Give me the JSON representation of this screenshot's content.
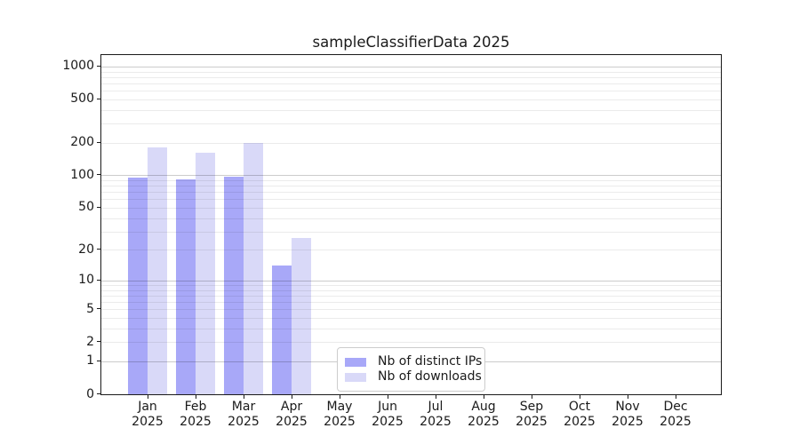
{
  "title": "sampleClassifierData 2025",
  "chart_data": {
    "type": "bar",
    "title": "sampleClassifierData 2025",
    "categories": [
      "Jan 2025",
      "Feb 2025",
      "Mar 2025",
      "Apr 2025",
      "May 2025",
      "Jun 2025",
      "Jul 2025",
      "Aug 2025",
      "Sep 2025",
      "Oct 2025",
      "Nov 2025",
      "Dec 2025"
    ],
    "series": [
      {
        "name": "Nb of distinct IPs",
        "color": "#a8a8f8",
        "values": [
          95,
          92,
          98,
          14,
          0,
          0,
          0,
          0,
          0,
          0,
          0,
          0
        ]
      },
      {
        "name": "Nb of downloads",
        "color": "#d9d9f8",
        "values": [
          180,
          162,
          198,
          26,
          0,
          0,
          0,
          0,
          0,
          0,
          0,
          0
        ]
      }
    ],
    "xlabel": "",
    "ylabel": "",
    "yscale": "log1p",
    "ylim": [
      0,
      1274
    ],
    "ytick_values": [
      0,
      1,
      2,
      5,
      10,
      20,
      50,
      100,
      200,
      500,
      1000
    ],
    "ytick_labels": [
      "0",
      "1",
      "2",
      "5",
      "10",
      "20",
      "50",
      "100",
      "200",
      "500",
      "1000"
    ],
    "grid": "major gray + minor faint horizontal lines",
    "legend_position": "lower center-left inside plot"
  }
}
